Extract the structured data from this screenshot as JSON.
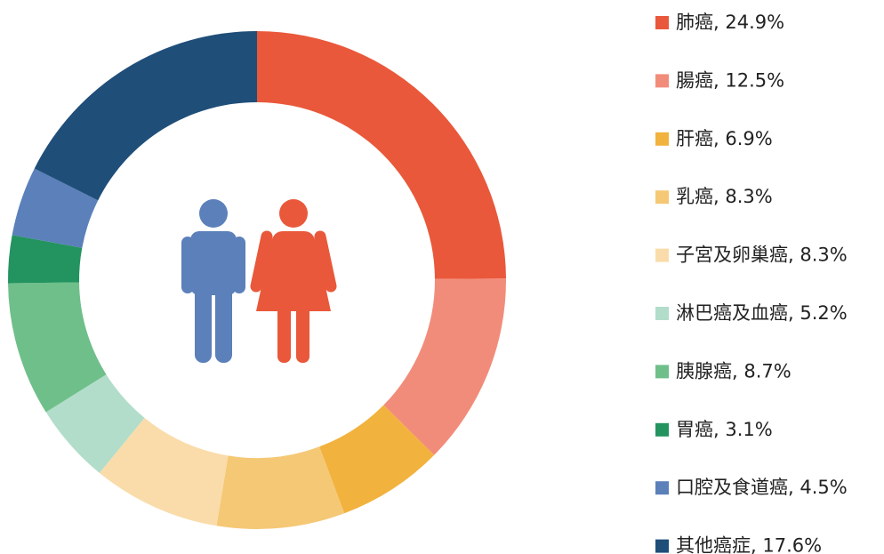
{
  "chart_data": {
    "type": "donut",
    "categories": [
      "肺癌, 24.9%",
      "腸癌, 12.5%",
      "肝癌, 6.9%",
      "乳癌, 8.3%",
      "子宮及卵巢癌, 8.3%",
      "淋巴癌及血癌, 5.2%",
      "胰腺癌, 8.7%",
      "胃癌, 3.1%",
      "口腔及食道癌, 4.5%",
      "其他癌症, 17.6%"
    ],
    "values": [
      24.9,
      12.5,
      6.9,
      8.3,
      8.3,
      5.2,
      8.7,
      3.1,
      4.5,
      17.6
    ],
    "colors": [
      "#e9583a",
      "#f28c7a",
      "#f2b23e",
      "#f5c875",
      "#fadcaa",
      "#b2ddcb",
      "#6fbf8a",
      "#23935f",
      "#5b80ba",
      "#1f4e79"
    ],
    "legend": "right"
  }
}
